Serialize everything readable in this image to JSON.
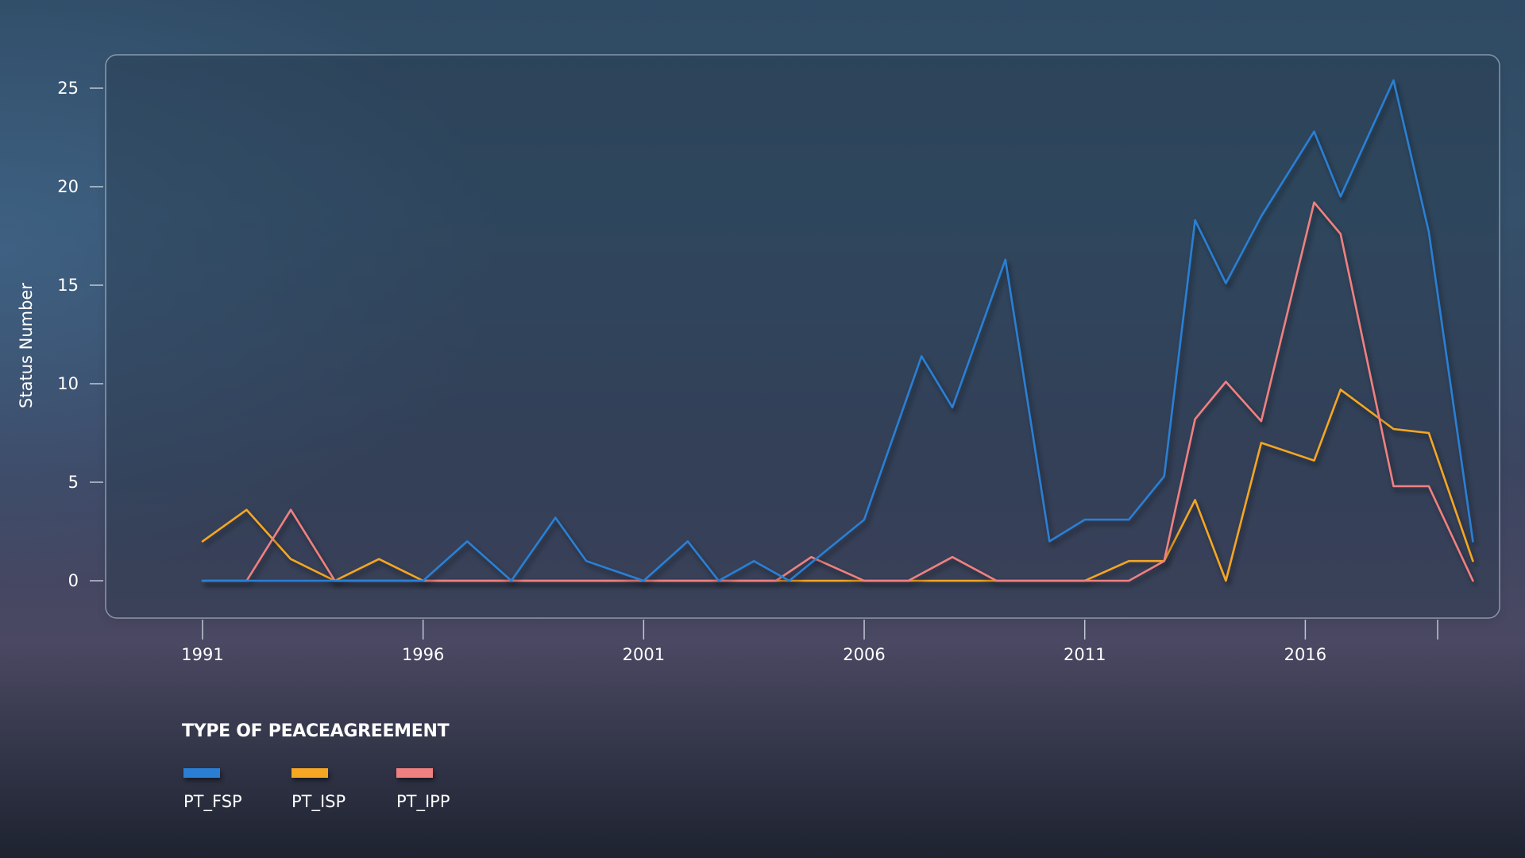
{
  "chart_data": {
    "type": "line",
    "title": "",
    "xlabel": "",
    "ylabel": "Status Number",
    "ylim": [
      0,
      25
    ],
    "xlim": [
      1991,
      2019
    ],
    "yticks": [
      0,
      5,
      10,
      15,
      20,
      25
    ],
    "xticks": [
      1991,
      1996,
      2001,
      2006,
      2011,
      2016
    ],
    "grid": false,
    "legend": {
      "title": "TYPE OF PEACEAGREEMENT",
      "position": "bottom-left"
    },
    "x": [
      1991,
      1992,
      1993,
      1994,
      1995,
      1996,
      1997,
      1998,
      1999,
      2000,
      2001,
      2002,
      2003,
      2004,
      2005,
      2006,
      2007,
      2008,
      2009,
      2010,
      2011,
      2012,
      2013,
      2014,
      2015,
      2016,
      2017,
      2018,
      2019
    ],
    "series": [
      {
        "name": "PT_FSP",
        "color": "#2a7fd4",
        "x": [
          1991,
          1992,
          1993,
          1994,
          1995,
          1996,
          1997,
          1998,
          1999,
          1999.7,
          2001,
          2002,
          2002.7,
          2003.5,
          2004.3,
          2006,
          2007.3,
          2008,
          2009.2,
          2010.2,
          2011,
          2012,
          2012.8,
          2013.5,
          2014.2,
          2015,
          2016.2,
          2016.8,
          2018,
          2018.8,
          2019.8
        ],
        "values": [
          0,
          0,
          0,
          0,
          0,
          0,
          2,
          0,
          3.2,
          1,
          0,
          2,
          0,
          1,
          0,
          3.1,
          11.4,
          8.8,
          16.3,
          2,
          3.1,
          3.1,
          5.3,
          18.3,
          15.1,
          18.5,
          22.8,
          19.5,
          25.4,
          17.7,
          2
        ]
      },
      {
        "name": "PT_ISP",
        "color": "#f5a623",
        "x": [
          1991,
          1992,
          1993,
          1994,
          1995,
          1996,
          1997,
          1998,
          1999,
          2000,
          2001,
          2002,
          2003,
          2004,
          2005,
          2006,
          2007,
          2008,
          2009,
          2010,
          2011,
          2012,
          2012.8,
          2013.5,
          2014.2,
          2015,
          2016.2,
          2016.8,
          2018,
          2018.8,
          2019.8
        ],
        "values": [
          2,
          3.6,
          1.1,
          0,
          1.1,
          0,
          0,
          0,
          0,
          0,
          0,
          0,
          0,
          0,
          0,
          0,
          0,
          0,
          0,
          0,
          0,
          1,
          1,
          4.1,
          0,
          7,
          6.1,
          9.7,
          7.7,
          7.5,
          1
        ]
      },
      {
        "name": "PT_IPP",
        "color": "#f08080",
        "x": [
          1991,
          1992,
          1993,
          1994,
          1995,
          1996,
          1997,
          1998,
          1999,
          2000,
          2001,
          2002,
          2003,
          2004,
          2004.8,
          2006,
          2007,
          2008,
          2009,
          2010,
          2011,
          2012,
          2012.8,
          2013.5,
          2014.2,
          2015,
          2016.2,
          2016.8,
          2018,
          2018.8,
          2019.8
        ],
        "values": [
          0,
          0,
          3.6,
          0,
          0,
          0,
          0,
          0,
          0,
          0,
          0,
          0,
          0,
          0,
          1.2,
          0,
          0,
          1.2,
          0,
          0,
          0,
          0,
          1,
          8.2,
          10.1,
          8.1,
          19.2,
          17.6,
          4.8,
          4.8,
          0
        ]
      }
    ]
  }
}
